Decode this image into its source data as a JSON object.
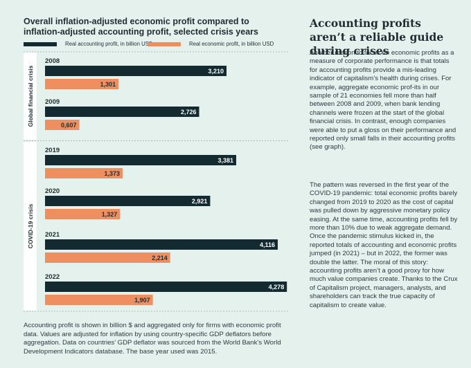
{
  "chart_data": {
    "type": "bar",
    "orientation": "horizontal",
    "title": "Overall inflation-adjusted economic profit compared to inflation-adjusted accounting profit, selected crisis years",
    "legend_position": "top",
    "series": [
      {
        "name": "Real accounting profit, in billion USD",
        "color": "#132a30",
        "values": [
          3.21,
          2.726,
          3.381,
          2.921,
          4.116,
          4.278
        ]
      },
      {
        "name": "Real economic profit, in billion USD",
        "color": "#ee8f5f",
        "values": [
          1.301,
          0.607,
          1.373,
          1.327,
          2.214,
          1.907
        ]
      }
    ],
    "categories": [
      "2008",
      "2009",
      "2019",
      "2020",
      "2021",
      "2022"
    ],
    "value_labels": {
      "accounting": [
        "3,210",
        "2,726",
        "3,381",
        "2,921",
        "4,116",
        "4,278"
      ],
      "economic": [
        "1,301",
        "0,607",
        "1,373",
        "1,327",
        "2,214",
        "1,907"
      ]
    },
    "groups": [
      {
        "label": "Global financial crisis",
        "categories": [
          "2008",
          "2009"
        ]
      },
      {
        "label": "COVID-19 crisis",
        "categories": [
          "2019",
          "2020",
          "2021",
          "2022"
        ]
      }
    ],
    "xlim": [
      0,
      4.3
    ],
    "grid": false
  },
  "footnote": "Accounting profit is shown in billion $ and aggregated only for firms with economic profit data. Values are adjusted for inflation by using country-specific GDP deflators before aggregation. Data on countries’ GDP deflator was sourced from the World Bank’s World Development Indicators database. The base year used was 2015.",
  "sidebar": {
    "title": "Accounting profits aren’t a reliable guide during crises",
    "paragraphs": [
      "Another reason to focus on economic profits as a measure of corporate performance is that totals for accounting profits provide a mis-leading indicator of capitalism’s health during crises. For example, aggregate economic prof-its in our sample of 21 economies fell more than half between 2008 and 2009, when bank lending channels were frozen at the start of the global financial crisis. In contrast, enough companies were able to put a gloss on their performance and reported only small falls in their accounting profits (see graph).",
      "The pattern was reversed in the first year of the COVID-19 pandemic: total economic profits barely changed from 2019 to 2020 as the cost of capital was pulled down by aggressive monetary policy easing. At the same time, accounting profits fell by more than 10% due to weak aggregate demand. Once the pandemic stimulus kicked in, the reported totals of accounting and economic profits jumped (in 2021) – but in 2022, the former was double the latter. The moral of this story: accounting profits aren’t a good proxy for how much value companies create. Thanks to the Crux of Capitalism project, managers, analysts, and shareholders can track the true capacity of capitalism to create value."
    ]
  }
}
